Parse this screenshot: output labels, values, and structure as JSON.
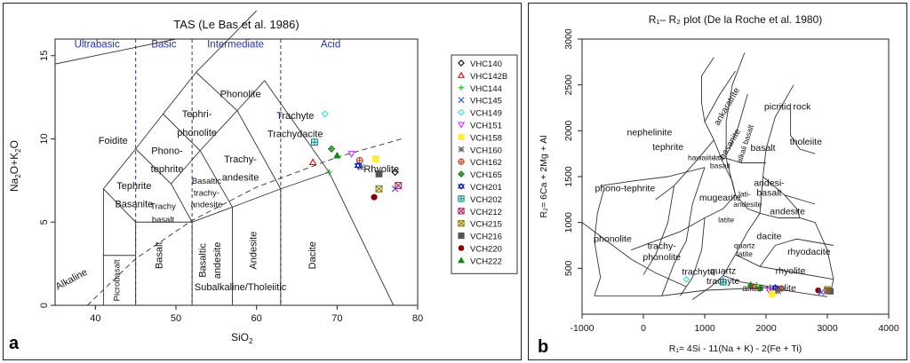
{
  "chart_data": [
    {
      "type": "scatter",
      "panel": "a",
      "title": "TAS (Le Bas et al. 1986)",
      "xlabel": "SiO",
      "xlabel_sub": "2",
      "ylabel_parts": [
        "Na",
        "2",
        "O+K",
        "2",
        "O"
      ],
      "xlim": [
        35,
        80
      ],
      "ylim": [
        0,
        16
      ],
      "xticks": [
        40,
        50,
        60,
        70,
        80
      ],
      "yticks": [
        0,
        5,
        10,
        15
      ],
      "grid": false,
      "legend_position": "right",
      "divisions": [
        "Ultrabasic",
        "Basic",
        "Intermediate",
        "Acid"
      ],
      "dashed_boundaries_x": [
        45,
        52,
        63
      ],
      "field_labels": [
        "Phonolite",
        "Foidite",
        "Tephri-",
        "phonolite",
        "Trachyte",
        "Trachydacite",
        "Phono-",
        "tephrite",
        "Trachy-",
        "andesite",
        "Tephrite",
        "Basanite",
        "Basaltic",
        "trachy-",
        "andesite",
        "Trachy",
        "basalt",
        "Rhyolite",
        "Picrobasalt",
        "Basalt",
        "Basaltic",
        "andesite",
        "Andesite",
        "Dacite",
        "Alkaline",
        "Subalkaline/Tholeiitic"
      ],
      "series": [
        {
          "name": "VHC140",
          "color": "#000000",
          "marker": "diamond-open",
          "points": [
            [
              77.2,
              8.0
            ]
          ]
        },
        {
          "name": "VHC142B",
          "color": "#ff0000",
          "marker": "triangle-open",
          "points": [
            [
              67.0,
              8.6
            ]
          ]
        },
        {
          "name": "VHC144",
          "color": "#00bb00",
          "marker": "plus",
          "points": [
            [
              69.0,
              8.0
            ]
          ]
        },
        {
          "name": "VHC145",
          "color": "#3344ff",
          "marker": "x",
          "points": [
            [
              77.2,
              7.0
            ]
          ]
        },
        {
          "name": "VCH149",
          "color": "#33dddd",
          "marker": "diamond-open",
          "points": [
            [
              68.5,
              11.5
            ]
          ]
        },
        {
          "name": "VCH151",
          "color": "#cc33ff",
          "marker": "triangle-down-open",
          "points": [
            [
              71.8,
              9.1
            ]
          ]
        },
        {
          "name": "VCH158",
          "color": "#ffee33",
          "marker": "square",
          "points": [
            [
              74.8,
              8.8
            ]
          ]
        },
        {
          "name": "VCH160",
          "color": "#666666",
          "marker": "asterisk",
          "points": [
            [
              73.0,
              8.3
            ]
          ]
        },
        {
          "name": "VCH162",
          "color": "#aa4422",
          "marker": "circle-plus",
          "points": [
            [
              72.8,
              8.7
            ]
          ]
        },
        {
          "name": "VCH165",
          "color": "#117711",
          "marker": "diamond-plus",
          "points": [
            [
              69.3,
              9.4
            ]
          ]
        },
        {
          "name": "VCH201",
          "color": "#1122aa",
          "marker": "star-of-david",
          "points": [
            [
              72.6,
              8.4
            ]
          ]
        },
        {
          "name": "VCH202",
          "color": "#008888",
          "marker": "square-plus",
          "points": [
            [
              67.2,
              9.8
            ]
          ]
        },
        {
          "name": "VCH212",
          "color": "#aa2266",
          "marker": "x-square",
          "points": [
            [
              77.6,
              7.2
            ]
          ]
        },
        {
          "name": "VCH215",
          "color": "#887700",
          "marker": "square-x",
          "points": [
            [
              75.2,
              7.0
            ]
          ]
        },
        {
          "name": "VCH216",
          "color": "#555555",
          "marker": "square",
          "points": [
            [
              75.2,
              7.9
            ]
          ]
        },
        {
          "name": "VCH220",
          "color": "#880000",
          "marker": "circle",
          "points": [
            [
              74.6,
              6.5
            ]
          ]
        },
        {
          "name": "VCH222",
          "color": "#118811",
          "marker": "triangle",
          "points": [
            [
              70.0,
              9.0
            ]
          ]
        }
      ]
    },
    {
      "type": "scatter",
      "panel": "b",
      "title": "R₁– R₂ plot (De la Roche et al. 1980)",
      "xlabel": "R₁= 4Si - 11(Na + K) - 2(Fe + Ti)",
      "ylabel": "R₂= 6Ca + 2Mg + Al",
      "xlim": [
        -1000,
        4000
      ],
      "ylim": [
        0,
        3000
      ],
      "xticks": [
        -1000,
        0,
        1000,
        2000,
        3000,
        4000
      ],
      "yticks": [
        500,
        1000,
        1500,
        2000,
        2500,
        3000
      ],
      "grid": false,
      "field_labels": [
        "ankaratrite",
        "picritic rock",
        "nephelinite",
        "basanite",
        "alkali basalt",
        "tholeiite",
        "basalt",
        "tephrite",
        "hawaiite",
        "lati-",
        "basalt",
        "andesi-",
        "basalt",
        "phono-tephrite",
        "mugearite",
        "lati-",
        "andesite",
        "andesite",
        "latite",
        "dacite",
        "quartz",
        "latite",
        "rhyodacite",
        "phonolite",
        "trachy-",
        "phonolite",
        "trachyte",
        "quartz",
        "trachyte",
        "alkali rhyolite",
        "rhyolite"
      ],
      "points": [
        {
          "x": 700,
          "y": 380,
          "color": "#33dddd",
          "marker": "diamond-open"
        },
        {
          "x": 1300,
          "y": 350,
          "color": "#008888",
          "marker": "square-plus"
        },
        {
          "x": 1750,
          "y": 320,
          "color": "#118811",
          "marker": "triangle"
        },
        {
          "x": 1850,
          "y": 320,
          "color": "#00bb00",
          "marker": "plus"
        },
        {
          "x": 1800,
          "y": 300,
          "color": "#ff0000",
          "marker": "triangle-open"
        },
        {
          "x": 1900,
          "y": 280,
          "color": "#117711",
          "marker": "diamond-plus"
        },
        {
          "x": 2050,
          "y": 260,
          "color": "#cc33ff",
          "marker": "triangle-down-open"
        },
        {
          "x": 2100,
          "y": 220,
          "color": "#ffee33",
          "marker": "square"
        },
        {
          "x": 2150,
          "y": 290,
          "color": "#1122aa",
          "marker": "star-of-david"
        },
        {
          "x": 2250,
          "y": 280,
          "color": "#aa4422",
          "marker": "circle-plus"
        },
        {
          "x": 2200,
          "y": 250,
          "color": "#666666",
          "marker": "asterisk"
        },
        {
          "x": 2850,
          "y": 260,
          "color": "#880000",
          "marker": "circle"
        },
        {
          "x": 2900,
          "y": 240,
          "color": "#3344ff",
          "marker": "x"
        },
        {
          "x": 3000,
          "y": 255,
          "color": "#aa2266",
          "marker": "x-square"
        },
        {
          "x": 3050,
          "y": 250,
          "color": "#555555",
          "marker": "square"
        },
        {
          "x": 3000,
          "y": 270,
          "color": "#887700",
          "marker": "square-x"
        }
      ]
    }
  ],
  "panel_labels": [
    "a",
    "b"
  ]
}
